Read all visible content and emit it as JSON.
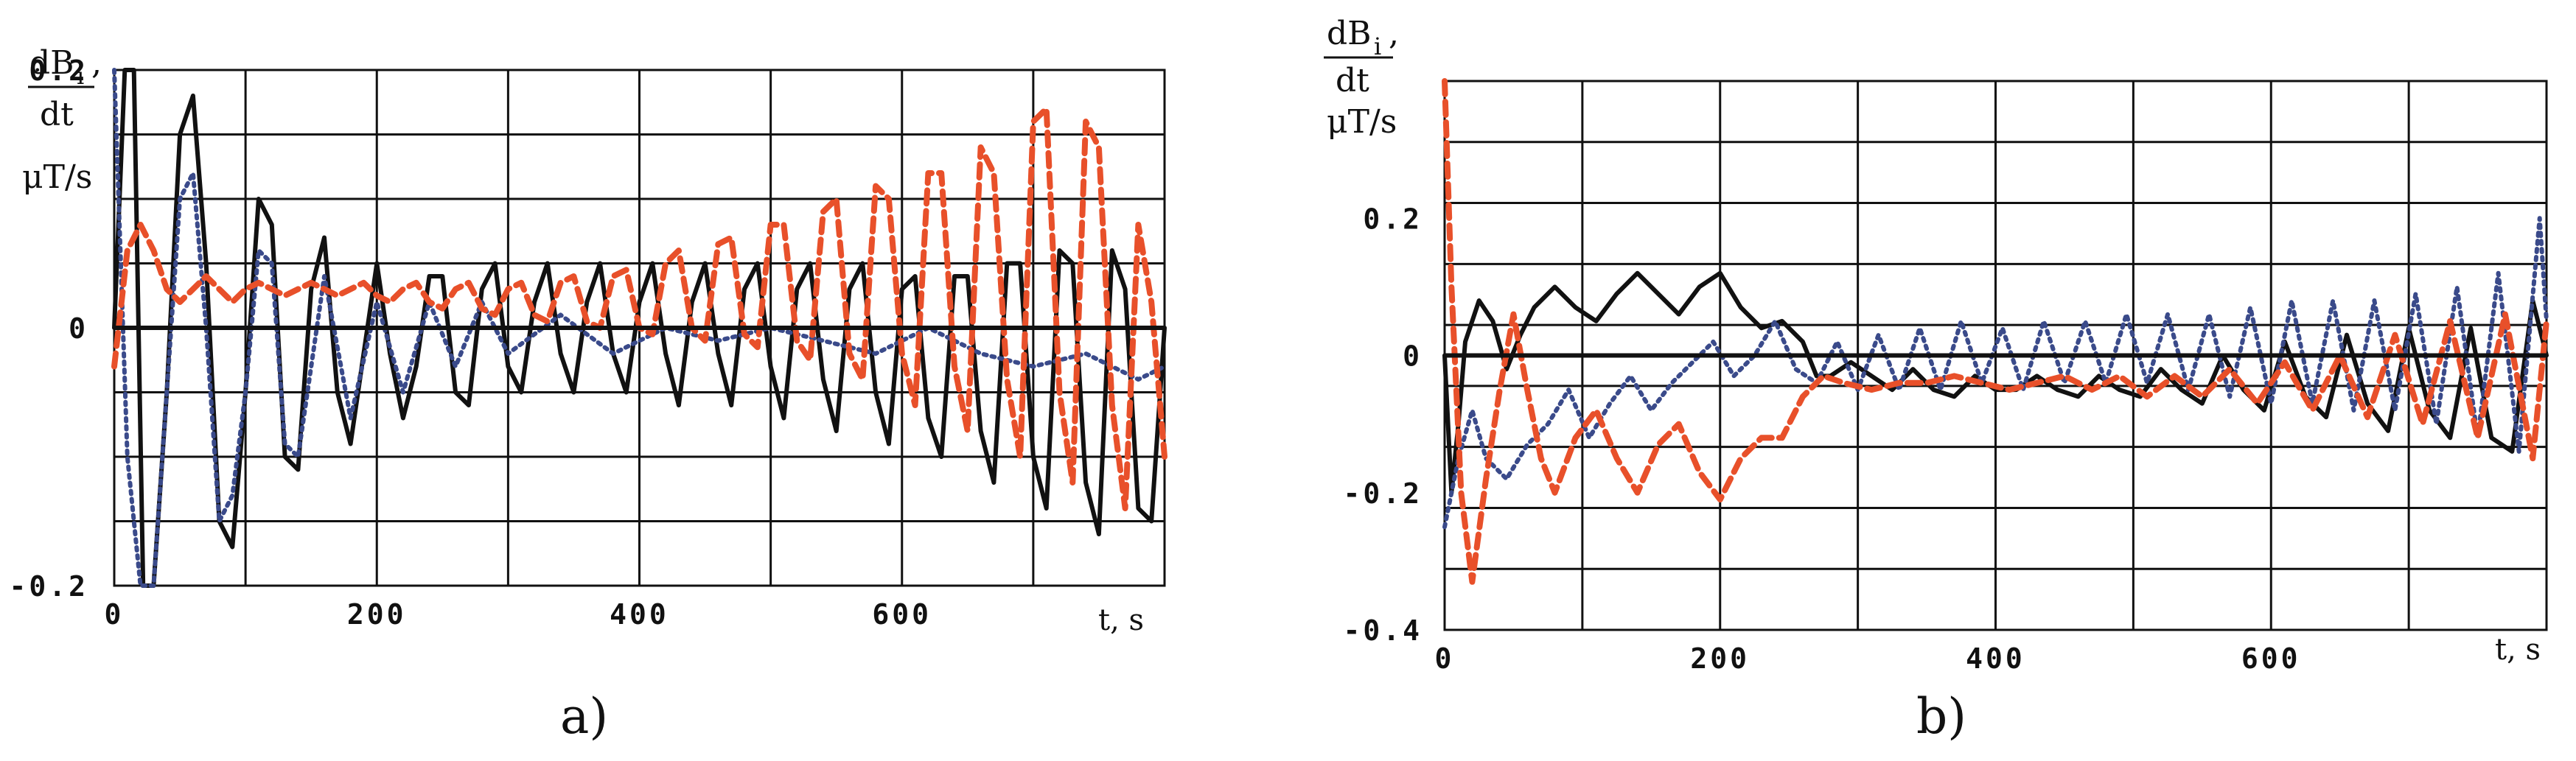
{
  "chart_data": [
    {
      "type": "line",
      "panel_label": "a)",
      "ylabel_num": "dB",
      "ylabel_sub": "i",
      "ylabel_comma": ",",
      "ylabel_den": "dt",
      "yunit": "μT/s",
      "xlabel": "t, s",
      "xlim": [
        0,
        800
      ],
      "ylim": [
        -0.2,
        0.2
      ],
      "x_ticks": [
        0,
        200,
        400,
        600
      ],
      "x_tick_labels": [
        "0",
        "200",
        "400",
        "600"
      ],
      "y_ticks": [
        0.2,
        0,
        -0.2
      ],
      "y_tick_labels": [
        "0.2",
        "0",
        "-0.2"
      ],
      "grid": true,
      "series": [
        {
          "color": "#111111",
          "style": "solid",
          "x": [
            0,
            8,
            15,
            22,
            30,
            40,
            50,
            60,
            70,
            80,
            90,
            100,
            110,
            120,
            130,
            140,
            150,
            160,
            170,
            180,
            190,
            200,
            210,
            220,
            230,
            240,
            250,
            260,
            270,
            280,
            290,
            300,
            310,
            320,
            330,
            340,
            350,
            360,
            370,
            380,
            390,
            400,
            410,
            420,
            430,
            440,
            450,
            460,
            470,
            480,
            490,
            500,
            510,
            520,
            530,
            540,
            550,
            560,
            570,
            580,
            590,
            600,
            610,
            620,
            630,
            640,
            650,
            660,
            670,
            680,
            690,
            700,
            710,
            720,
            730,
            740,
            750,
            760,
            770,
            780,
            790,
            800
          ],
          "y": [
            0,
            0.4,
            0.2,
            -0.2,
            -0.35,
            -0.05,
            0.15,
            0.18,
            0.05,
            -0.15,
            -0.17,
            -0.05,
            0.1,
            0.08,
            -0.1,
            -0.11,
            0.03,
            0.07,
            -0.05,
            -0.09,
            -0.02,
            0.05,
            -0.02,
            -0.07,
            -0.03,
            0.04,
            0.04,
            -0.05,
            -0.06,
            0.03,
            0.05,
            -0.03,
            -0.05,
            0.02,
            0.05,
            -0.02,
            -0.05,
            0.02,
            0.05,
            -0.02,
            -0.05,
            0.02,
            0.05,
            -0.02,
            -0.06,
            0.02,
            0.05,
            -0.02,
            -0.06,
            0.03,
            0.05,
            -0.03,
            -0.07,
            0.03,
            0.05,
            -0.04,
            -0.08,
            0.03,
            0.05,
            -0.05,
            -0.09,
            0.03,
            0.04,
            -0.07,
            -0.1,
            0.04,
            0.04,
            -0.08,
            -0.12,
            0.05,
            0.05,
            -0.1,
            -0.14,
            0.06,
            0.05,
            -0.12,
            -0.16,
            0.06,
            0.03,
            -0.14,
            -0.15,
            0.0
          ]
        },
        {
          "color": "#3a4a8a",
          "style": "dotted",
          "x": [
            0,
            10,
            20,
            30,
            40,
            50,
            60,
            70,
            80,
            90,
            100,
            110,
            120,
            130,
            140,
            160,
            180,
            200,
            220,
            240,
            260,
            280,
            300,
            340,
            380,
            420,
            460,
            500,
            540,
            580,
            620,
            660,
            700,
            740,
            780,
            800
          ],
          "y": [
            0.2,
            -0.1,
            -0.35,
            -0.3,
            -0.05,
            0.1,
            0.12,
            0.0,
            -0.15,
            -0.13,
            -0.05,
            0.06,
            0.05,
            -0.09,
            -0.1,
            0.04,
            -0.07,
            0.02,
            -0.05,
            0.02,
            -0.03,
            0.02,
            -0.02,
            0.01,
            -0.02,
            0.0,
            -0.01,
            0.0,
            -0.01,
            -0.02,
            0.0,
            -0.02,
            -0.03,
            -0.02,
            -0.04,
            -0.03
          ]
        },
        {
          "color": "#e8502a",
          "style": "dashed",
          "x": [
            0,
            10,
            20,
            30,
            40,
            50,
            60,
            70,
            80,
            90,
            100,
            110,
            120,
            130,
            140,
            150,
            160,
            170,
            180,
            190,
            200,
            210,
            220,
            230,
            240,
            250,
            260,
            270,
            280,
            290,
            300,
            310,
            320,
            330,
            340,
            350,
            360,
            370,
            380,
            390,
            400,
            410,
            420,
            430,
            440,
            450,
            460,
            470,
            480,
            490,
            500,
            510,
            520,
            530,
            540,
            550,
            560,
            570,
            580,
            590,
            600,
            610,
            620,
            630,
            640,
            650,
            660,
            670,
            680,
            690,
            700,
            710,
            720,
            730,
            740,
            750,
            760,
            770,
            780,
            790,
            800
          ],
          "y": [
            -0.03,
            0.06,
            0.08,
            0.06,
            0.03,
            0.02,
            0.03,
            0.04,
            0.03,
            0.02,
            0.03,
            0.035,
            0.03,
            0.025,
            0.03,
            0.035,
            0.03,
            0.025,
            0.03,
            0.035,
            0.025,
            0.02,
            0.03,
            0.035,
            0.02,
            0.015,
            0.03,
            0.035,
            0.015,
            0.01,
            0.03,
            0.035,
            0.01,
            0.005,
            0.035,
            0.04,
            0.005,
            0.0,
            0.04,
            0.045,
            0.0,
            -0.005,
            0.05,
            0.06,
            0.0,
            -0.01,
            0.065,
            0.07,
            -0.005,
            -0.015,
            0.08,
            0.08,
            -0.01,
            -0.025,
            0.09,
            0.1,
            -0.02,
            -0.04,
            0.11,
            0.1,
            -0.02,
            -0.06,
            0.12,
            0.12,
            -0.03,
            -0.08,
            0.14,
            0.12,
            -0.04,
            -0.1,
            0.16,
            0.17,
            -0.05,
            -0.12,
            0.16,
            0.14,
            -0.06,
            -0.14,
            0.08,
            0.02,
            -0.1
          ]
        }
      ]
    },
    {
      "type": "line",
      "panel_label": "b)",
      "ylabel_num": "dB",
      "ylabel_sub": "i",
      "ylabel_comma": ",",
      "ylabel_den": "dt",
      "yunit": "μT/s",
      "xlabel": "t, s",
      "xlim": [
        0,
        800
      ],
      "ylim": [
        -0.4,
        0.4
      ],
      "x_ticks": [
        0,
        200,
        400,
        600
      ],
      "x_tick_labels": [
        "0",
        "200",
        "400",
        "600"
      ],
      "y_ticks": [
        0.2,
        0,
        -0.2,
        -0.4
      ],
      "y_tick_labels": [
        "0.2",
        "0",
        "-0.2",
        "-0.4"
      ],
      "grid": true,
      "series": [
        {
          "color": "#111111",
          "style": "solid",
          "x": [
            0,
            5,
            10,
            15,
            25,
            35,
            45,
            55,
            65,
            80,
            95,
            110,
            125,
            140,
            155,
            170,
            185,
            200,
            215,
            230,
            245,
            260,
            270,
            280,
            295,
            310,
            325,
            340,
            355,
            370,
            385,
            400,
            415,
            430,
            445,
            460,
            475,
            490,
            505,
            520,
            535,
            550,
            565,
            580,
            595,
            610,
            625,
            640,
            655,
            670,
            685,
            700,
            715,
            730,
            745,
            760,
            775,
            790,
            800
          ],
          "y": [
            0,
            -0.2,
            -0.1,
            0.02,
            0.08,
            0.05,
            -0.02,
            0.03,
            0.07,
            0.1,
            0.07,
            0.05,
            0.09,
            0.12,
            0.09,
            0.06,
            0.1,
            0.12,
            0.07,
            0.04,
            0.05,
            0.02,
            -0.03,
            -0.03,
            -0.01,
            -0.03,
            -0.05,
            -0.02,
            -0.05,
            -0.06,
            -0.03,
            -0.05,
            -0.05,
            -0.03,
            -0.05,
            -0.06,
            -0.03,
            -0.05,
            -0.06,
            -0.02,
            -0.05,
            -0.07,
            0.0,
            -0.05,
            -0.08,
            0.02,
            -0.06,
            -0.09,
            0.03,
            -0.07,
            -0.11,
            0.04,
            -0.08,
            -0.12,
            0.04,
            -0.12,
            -0.14,
            0.08,
            0.0
          ]
        },
        {
          "color": "#3a4a8a",
          "style": "dotted",
          "x": [
            0,
            10,
            20,
            30,
            45,
            60,
            75,
            90,
            105,
            120,
            135,
            150,
            165,
            180,
            195,
            210,
            225,
            240,
            255,
            270,
            285,
            300,
            315,
            330,
            345,
            360,
            375,
            390,
            405,
            420,
            435,
            450,
            465,
            480,
            495,
            510,
            525,
            540,
            555,
            570,
            585,
            600,
            615,
            630,
            645,
            660,
            675,
            690,
            705,
            720,
            735,
            750,
            765,
            780,
            795,
            800
          ],
          "y": [
            -0.25,
            -0.15,
            -0.08,
            -0.15,
            -0.18,
            -0.13,
            -0.1,
            -0.05,
            -0.12,
            -0.07,
            -0.03,
            -0.08,
            -0.04,
            -0.01,
            0.02,
            -0.03,
            0.0,
            0.05,
            -0.02,
            -0.04,
            0.02,
            -0.05,
            0.03,
            -0.05,
            0.04,
            -0.05,
            0.05,
            -0.04,
            0.04,
            -0.05,
            0.05,
            -0.04,
            0.05,
            -0.04,
            0.06,
            -0.04,
            0.06,
            -0.05,
            0.06,
            -0.06,
            0.07,
            -0.07,
            0.08,
            -0.07,
            0.08,
            -0.08,
            0.08,
            -0.08,
            0.09,
            -0.1,
            0.1,
            -0.12,
            0.12,
            -0.14,
            0.2,
            0.05
          ]
        },
        {
          "color": "#e8502a",
          "style": "dashed",
          "x": [
            0,
            5,
            12,
            20,
            30,
            40,
            50,
            60,
            70,
            80,
            95,
            110,
            125,
            140,
            155,
            170,
            185,
            200,
            215,
            230,
            245,
            260,
            275,
            290,
            310,
            330,
            350,
            370,
            390,
            410,
            430,
            450,
            470,
            490,
            510,
            530,
            550,
            570,
            590,
            610,
            630,
            650,
            670,
            690,
            710,
            730,
            750,
            770,
            790,
            800
          ],
          "y": [
            0.4,
            0.1,
            -0.2,
            -0.33,
            -0.18,
            -0.05,
            0.06,
            -0.05,
            -0.15,
            -0.2,
            -0.12,
            -0.08,
            -0.15,
            -0.2,
            -0.13,
            -0.1,
            -0.17,
            -0.21,
            -0.15,
            -0.12,
            -0.12,
            -0.06,
            -0.03,
            -0.04,
            -0.05,
            -0.04,
            -0.04,
            -0.03,
            -0.04,
            -0.05,
            -0.04,
            -0.03,
            -0.05,
            -0.03,
            -0.06,
            -0.03,
            -0.06,
            -0.02,
            -0.07,
            -0.01,
            -0.08,
            0.0,
            -0.09,
            0.03,
            -0.1,
            0.05,
            -0.12,
            0.06,
            -0.15,
            0.05
          ]
        }
      ]
    }
  ]
}
